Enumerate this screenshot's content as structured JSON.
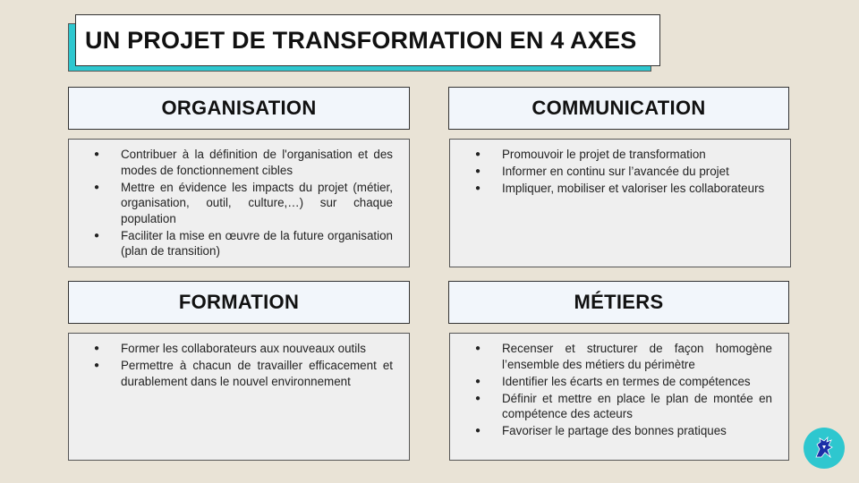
{
  "title": "UN PROJET DE TRANSFORMATION EN 4 AXES",
  "sections": [
    {
      "heading": "ORGANISATION",
      "items": [
        "Contribuer à la définition de l'organisation et des modes de fonctionnement cibles",
        "Mettre en évidence les impacts du projet (métier, organisation, outil, culture,…) sur chaque population",
        "Faciliter la mise en œuvre de la future organisation (plan de transition)"
      ]
    },
    {
      "heading": "COMMUNICATION",
      "items": [
        "Promouvoir le projet de transformation",
        "Informer en continu sur l’avancée du projet",
        "Impliquer, mobiliser et valoriser les collaborateurs"
      ]
    },
    {
      "heading": "FORMATION",
      "items": [
        "Former les collaborateurs aux nouveaux outils",
        "Permettre à chacun de travailler efficacement et durablement dans le nouvel environnement"
      ]
    },
    {
      "heading": "MÉTIERS",
      "items": [
        "Recenser et structurer de façon homogène l’ensemble des métiers du périmètre",
        "Identifier les écarts en termes de compétences",
        "Définir et mettre en place le plan de montée en compétence des acteurs",
        "Favoriser le partage des bonnes pratiques"
      ]
    }
  ],
  "bullet_glyph": "●",
  "logo": {
    "icon": "heraldic-beast-icon",
    "color": "#2ec7cf"
  },
  "colors": {
    "accent": "#2ec7cf",
    "background": "#e9e3d6"
  }
}
